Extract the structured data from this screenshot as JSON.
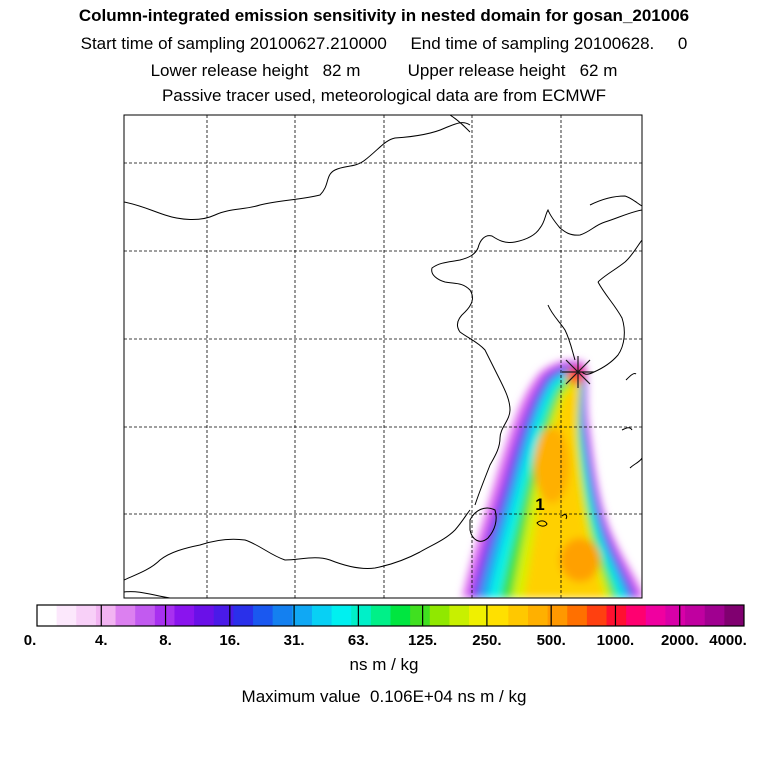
{
  "header": {
    "title": "Column-integrated emission sensitivity in nested domain for gosan_201006",
    "sampling": "Start time of sampling 20100627.210000     End time of sampling 20100628.     0",
    "release": "Lower release height   82 m          Upper release height   62 m",
    "tracer": "Passive tracer used, meteorological data are from ECMWF"
  },
  "map": {
    "marker_label": "1",
    "release_site_icon": "star-icon"
  },
  "colorbar": {
    "ticks": [
      "0.",
      "4.",
      "8.",
      "16.",
      "31.",
      "63.",
      "125.",
      "250.",
      "500.",
      "1000.",
      "2000.",
      "4000."
    ],
    "colors": [
      "#ffffff",
      "#fce8fc",
      "#f8d0f8",
      "#f2b4f2",
      "#dc80f0",
      "#c25af0",
      "#a830f0",
      "#8a14ee",
      "#6a10e8",
      "#4a1ae8",
      "#2a30ea",
      "#1a58f0",
      "#1480f0",
      "#10a8f4",
      "#08d0f4",
      "#00f0f0",
      "#00f0c8",
      "#00f088",
      "#00e640",
      "#40e020",
      "#90e800",
      "#c8f000",
      "#f0f000",
      "#ffe000",
      "#ffc800",
      "#ffb000",
      "#ff9800",
      "#ff7000",
      "#ff4010",
      "#ff1030",
      "#ff0070",
      "#f000a0",
      "#d800a8",
      "#c000a0",
      "#a00090",
      "#800070"
    ],
    "units": "ns m / kg"
  },
  "footer": {
    "max_value": "Maximum value  0.106E+04 ns m / kg"
  }
}
